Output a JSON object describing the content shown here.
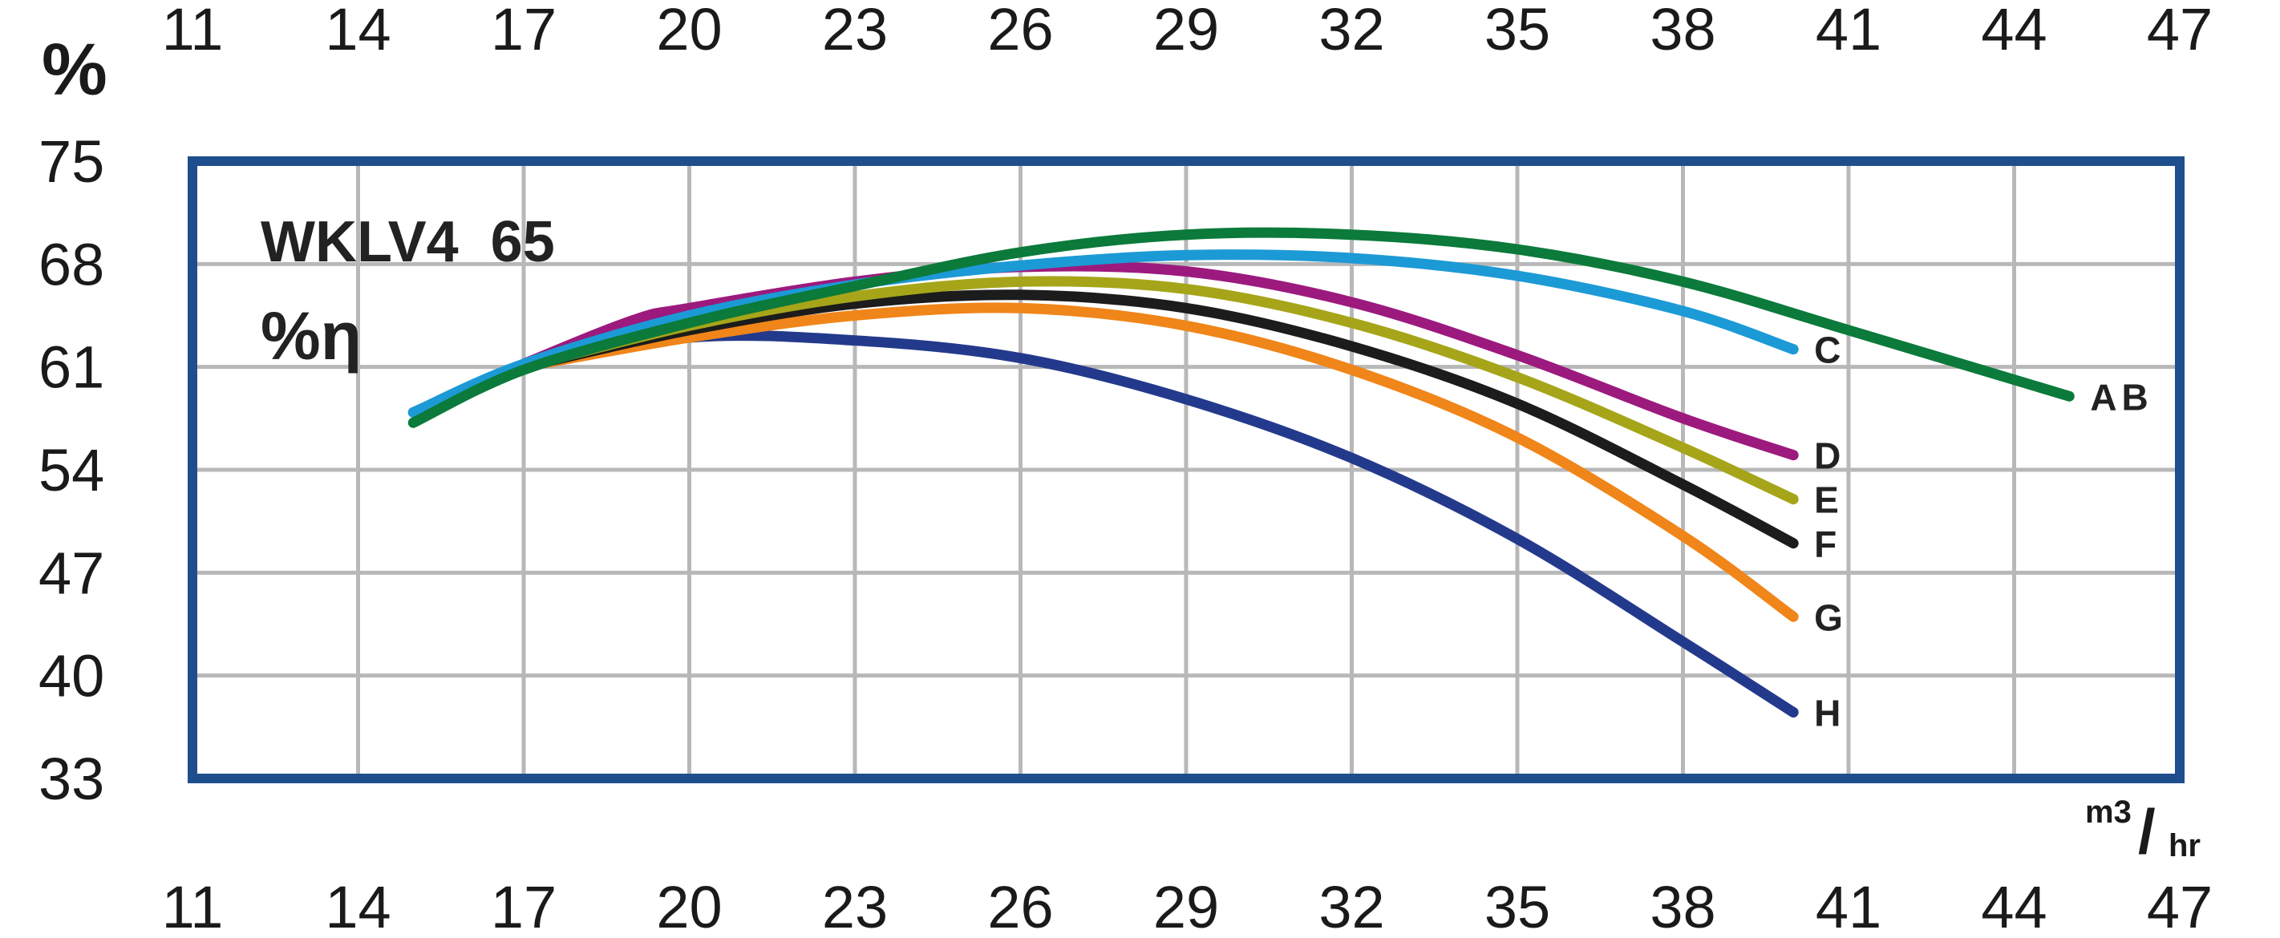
{
  "chart_data": {
    "type": "line",
    "title": "WKLV4  65",
    "subtitle": "%η",
    "ylabel": "%",
    "xunit": {
      "base": "m3",
      "sep": "/",
      "den": "hr"
    },
    "xlim": [
      11,
      47
    ],
    "ylim": [
      33,
      75
    ],
    "x_ticks": [
      "11",
      "14",
      "17",
      "20",
      "23",
      "26",
      "29",
      "32",
      "35",
      "38",
      "41",
      "44",
      "47"
    ],
    "y_ticks": [
      "75",
      "68",
      "61",
      "54",
      "47",
      "40",
      "33"
    ],
    "grid": true,
    "series": [
      {
        "name": "AB",
        "color": "#0b7a3a",
        "x": [
          15,
          17,
          20,
          23,
          26,
          29,
          32,
          35,
          38,
          41,
          45
        ],
        "y": [
          57.2,
          60.8,
          64.0,
          66.5,
          68.8,
          70.0,
          70.0,
          69.0,
          66.8,
          63.5,
          59.0
        ]
      },
      {
        "name": "C",
        "color": "#1c9ad6",
        "x": [
          15,
          17,
          20,
          23,
          26,
          29,
          32,
          35,
          38,
          40
        ],
        "y": [
          57.9,
          61.2,
          64.5,
          66.6,
          67.9,
          68.6,
          68.4,
          67.2,
          64.8,
          62.2
        ]
      },
      {
        "name": "D",
        "color": "#9c1a7e",
        "x": [
          15,
          17,
          19,
          20,
          23,
          26,
          29,
          32,
          35,
          38,
          40
        ],
        "y": [
          57.9,
          61.2,
          64.2,
          65.0,
          66.8,
          67.8,
          67.5,
          65.4,
          61.8,
          57.5,
          55.0
        ]
      },
      {
        "name": "E",
        "color": "#a6a51a",
        "x": [
          17,
          20,
          23,
          26,
          29,
          32,
          35,
          38,
          40
        ],
        "y": [
          61.0,
          63.8,
          65.8,
          66.8,
          66.3,
          64.0,
          60.3,
          55.5,
          52.0
        ]
      },
      {
        "name": "F",
        "color": "#1c1c1c",
        "x": [
          17,
          20,
          23,
          26,
          29,
          32,
          35,
          38,
          40
        ],
        "y": [
          61.0,
          63.5,
          65.3,
          65.9,
          65.0,
          62.4,
          58.5,
          53.0,
          49.0
        ]
      },
      {
        "name": "G",
        "color": "#f08519",
        "x": [
          17,
          20,
          23,
          26,
          29,
          32,
          35,
          38,
          40
        ],
        "y": [
          61.0,
          63.0,
          64.5,
          65.0,
          63.8,
          60.8,
          56.2,
          49.5,
          44.0
        ]
      },
      {
        "name": "H",
        "color": "#233a8c",
        "x": [
          17,
          20,
          23,
          26,
          29,
          32,
          35,
          38,
          40
        ],
        "y": [
          61.0,
          63.0,
          62.8,
          61.6,
          58.8,
          54.8,
          49.3,
          42.3,
          37.5
        ]
      }
    ]
  }
}
